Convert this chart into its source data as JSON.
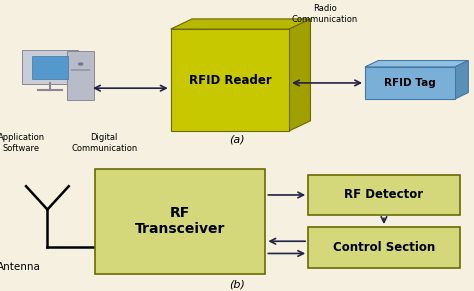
{
  "bg_color": "#f5f0e0",
  "rfid_reader_front": "#c8c800",
  "rfid_reader_side": "#a0a000",
  "rfid_reader_top": "#b8b800",
  "rfid_tag_front": "#7ab0d8",
  "rfid_tag_side": "#5a90b8",
  "rfid_tag_top": "#90c0e0",
  "box_color_light": "#d4d87a",
  "box_border": "#6a6a00",
  "arrow_color": "#222244",
  "text_color": "#000000",
  "rfid_reader_label": "RFID Reader",
  "rfid_tag_label": "RFID Tag",
  "app_software_label": "Application\nSoftware",
  "digital_comm_label": "Digital\nCommunication",
  "radio_comm_label": "Radio\nCommunication",
  "rf_transceiver_label": "RF\nTransceiver",
  "rf_detector_label": "RF Detector",
  "control_section_label": "Control Section",
  "antenna_label": "Antenna",
  "label_a": "(a)",
  "label_b": "(b)"
}
